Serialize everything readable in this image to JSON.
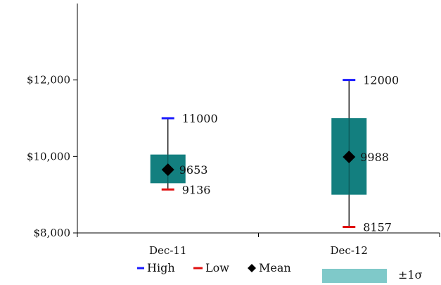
{
  "chart_data": {
    "type": "box",
    "categories": [
      "Dec-11",
      "Dec-12"
    ],
    "y_axis": {
      "min": 8000,
      "max": 14000,
      "ticks": [
        8000,
        10000,
        12000
      ],
      "tick_labels": [
        "$8,000",
        "$10,000",
        "$12,000"
      ]
    },
    "series": [
      {
        "name": "High",
        "values": [
          11000,
          12000
        ],
        "color": "#1a1aff"
      },
      {
        "name": "Low",
        "values": [
          9136,
          8157
        ],
        "color": "#e01010"
      },
      {
        "name": "Mean",
        "values": [
          9653,
          9988
        ],
        "color": "#000000"
      }
    ],
    "sigma_band": {
      "name": "±1σ",
      "color": "#137f7f",
      "legend_color": "#7fc9c9",
      "lower": [
        9300,
        9000
      ],
      "upper": [
        10050,
        11000
      ]
    },
    "data_labels": {
      "high": [
        "11000",
        "12000"
      ],
      "low": [
        "9136",
        "8157"
      ],
      "mean": [
        "9653",
        "9988"
      ]
    },
    "legend": {
      "position": "bottom",
      "items": [
        "High",
        "Low",
        "Mean",
        "±1σ"
      ]
    },
    "grid": false
  }
}
